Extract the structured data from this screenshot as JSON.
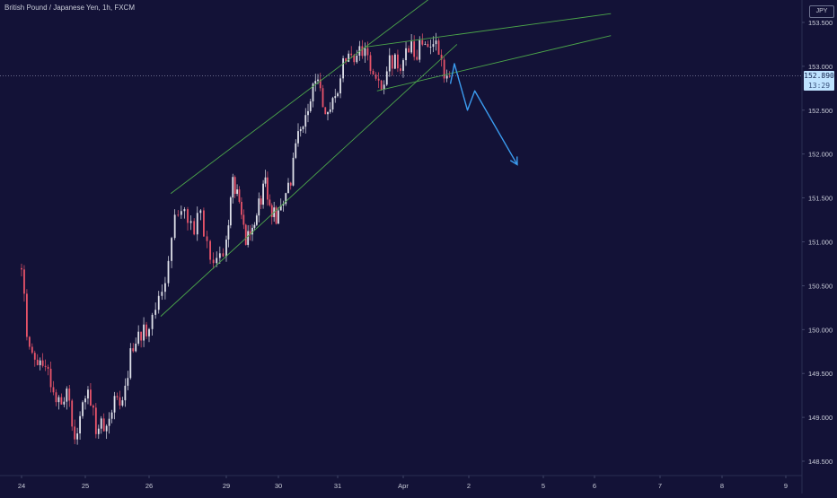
{
  "header": {
    "title": "British Pound / Japanese Yen, 1h, FXCM",
    "currency": "JPY"
  },
  "price_tag": {
    "price": "152.890",
    "countdown": "13:29"
  },
  "colors": {
    "background": "#131237",
    "up_candle": "#dfe1ea",
    "down_candle": "#e9546a",
    "trendline": "#4ca64a",
    "projection": "#3b9cf0",
    "axis_text": "#c9ccd8"
  },
  "chart_data": {
    "type": "candlestick",
    "symbol": "GBPJPY",
    "interval": "1h",
    "y_ticks": [
      "153.500",
      "153.000",
      "152.500",
      "152.000",
      "151.500",
      "151.000",
      "150.500",
      "150.000",
      "149.500",
      "149.000",
      "148.500"
    ],
    "x_ticks": [
      "24",
      "25",
      "26",
      "29",
      "30",
      "31",
      "Apr",
      "2",
      "5",
      "6",
      "7",
      "8",
      "9"
    ],
    "ylim": [
      148.4,
      153.72
    ],
    "close_levels": [
      {
        "d": 0.0,
        "c": 150.65
      },
      {
        "d": 0.1,
        "c": 149.9
      },
      {
        "d": 0.25,
        "c": 149.55
      },
      {
        "d": 0.3,
        "c": 149.75
      },
      {
        "d": 0.45,
        "c": 149.4
      },
      {
        "d": 0.6,
        "c": 149.1
      },
      {
        "d": 0.7,
        "c": 149.35
      },
      {
        "d": 0.82,
        "c": 148.82
      },
      {
        "d": 0.95,
        "c": 149.05
      },
      {
        "d": 1.05,
        "c": 149.4
      },
      {
        "d": 1.15,
        "c": 148.9
      },
      {
        "d": 1.32,
        "c": 148.95
      },
      {
        "d": 1.48,
        "c": 149.2
      },
      {
        "d": 1.55,
        "c": 149.05
      },
      {
        "d": 1.7,
        "c": 149.7
      },
      {
        "d": 1.82,
        "c": 149.95
      },
      {
        "d": 2.0,
        "c": 150.0
      },
      {
        "d": 2.15,
        "c": 150.35
      },
      {
        "d": 2.22,
        "c": 150.55
      },
      {
        "d": 2.3,
        "c": 151.2
      },
      {
        "d": 2.45,
        "c": 151.5
      },
      {
        "d": 2.55,
        "c": 151.1
      },
      {
        "d": 2.65,
        "c": 151.35
      },
      {
        "d": 2.78,
        "c": 150.9
      },
      {
        "d": 2.85,
        "c": 150.75
      },
      {
        "d": 2.95,
        "c": 150.9
      },
      {
        "d": 3.0,
        "c": 151.05
      },
      {
        "d": 3.12,
        "c": 151.75
      },
      {
        "d": 3.25,
        "c": 151.45
      },
      {
        "d": 3.35,
        "c": 151.05
      },
      {
        "d": 3.45,
        "c": 151.0
      },
      {
        "d": 3.55,
        "c": 151.3
      },
      {
        "d": 3.65,
        "c": 151.45
      },
      {
        "d": 3.75,
        "c": 151.7
      },
      {
        "d": 3.85,
        "c": 151.4
      },
      {
        "d": 3.95,
        "c": 151.25
      },
      {
        "d": 4.0,
        "c": 151.3
      },
      {
        "d": 4.1,
        "c": 151.5
      },
      {
        "d": 4.2,
        "c": 151.65
      },
      {
        "d": 4.3,
        "c": 152.1
      },
      {
        "d": 4.42,
        "c": 152.35
      },
      {
        "d": 4.55,
        "c": 152.65
      },
      {
        "d": 4.65,
        "c": 152.8
      },
      {
        "d": 4.75,
        "c": 152.6
      },
      {
        "d": 4.85,
        "c": 152.5
      },
      {
        "d": 4.95,
        "c": 152.75
      },
      {
        "d": 5.0,
        "c": 152.8
      },
      {
        "d": 5.1,
        "c": 153.05
      },
      {
        "d": 5.25,
        "c": 153.1
      },
      {
        "d": 5.4,
        "c": 153.15
      },
      {
        "d": 5.5,
        "c": 153.0
      },
      {
        "d": 5.6,
        "c": 152.8
      },
      {
        "d": 5.68,
        "c": 152.75
      },
      {
        "d": 5.8,
        "c": 153.05
      },
      {
        "d": 5.95,
        "c": 153.0
      },
      {
        "d": 6.0,
        "c": 153.0
      },
      {
        "d": 6.1,
        "c": 153.3
      },
      {
        "d": 6.2,
        "c": 153.1
      },
      {
        "d": 6.3,
        "c": 153.3
      },
      {
        "d": 6.42,
        "c": 153.2
      },
      {
        "d": 6.5,
        "c": 153.3
      },
      {
        "d": 6.55,
        "c": 153.1
      },
      {
        "d": 6.63,
        "c": 152.95
      },
      {
        "d": 6.68,
        "c": 152.82
      },
      {
        "d": 6.72,
        "c": 152.89
      }
    ],
    "trendlines": [
      {
        "name": "channel-upper",
        "points": [
          {
            "d": 2.28,
            "p": 151.55
          },
          {
            "d": 8.35,
            "p": 154.9
          }
        ]
      },
      {
        "name": "channel-lower",
        "points": [
          {
            "d": 2.15,
            "p": 150.15
          },
          {
            "d": 6.82,
            "p": 153.25
          }
        ]
      },
      {
        "name": "wedge-upper",
        "points": [
          {
            "d": 5.42,
            "p": 153.22
          },
          {
            "d": 9.25,
            "p": 153.6
          }
        ]
      },
      {
        "name": "wedge-lower",
        "points": [
          {
            "d": 5.6,
            "p": 152.72
          },
          {
            "d": 9.25,
            "p": 153.35
          }
        ]
      }
    ],
    "last_price": 152.89,
    "projection": [
      {
        "d": 6.72,
        "p": 152.8
      },
      {
        "d": 6.78,
        "p": 153.03
      },
      {
        "d": 6.98,
        "p": 152.5
      },
      {
        "d": 7.08,
        "p": 152.72
      },
      {
        "d": 7.65,
        "p": 151.88
      }
    ]
  }
}
